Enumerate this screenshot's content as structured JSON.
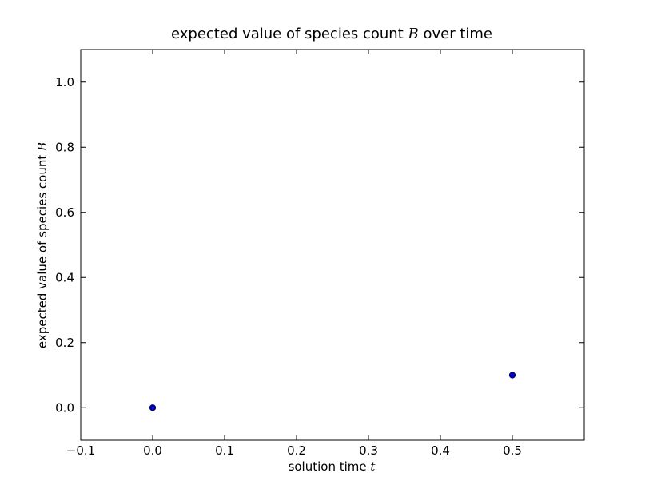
{
  "chart_data": {
    "type": "scatter",
    "title_pre": "expected value of species count ",
    "title_var": "B",
    "title_post": " over time",
    "xlabel_pre": "solution time ",
    "xlabel_var": "t",
    "ylabel_pre": "expected value of species count ",
    "ylabel_var": "B",
    "xlim": [
      -0.1,
      0.6
    ],
    "ylim": [
      -0.1,
      1.1
    ],
    "xticks": [
      -0.1,
      0.0,
      0.1,
      0.2,
      0.3,
      0.4,
      0.5
    ],
    "xtick_labels": [
      "−0.1",
      "0.0",
      "0.1",
      "0.2",
      "0.3",
      "0.4",
      "0.5"
    ],
    "yticks": [
      0.0,
      0.2,
      0.4,
      0.6,
      0.8,
      1.0
    ],
    "ytick_labels": [
      "0.0",
      "0.2",
      "0.4",
      "0.6",
      "0.8",
      "1.0"
    ],
    "grid": false,
    "marker_color": "#0000cc",
    "series": [
      {
        "x": [
          0.0,
          0.5
        ],
        "y": [
          0.0,
          0.1
        ]
      }
    ]
  }
}
